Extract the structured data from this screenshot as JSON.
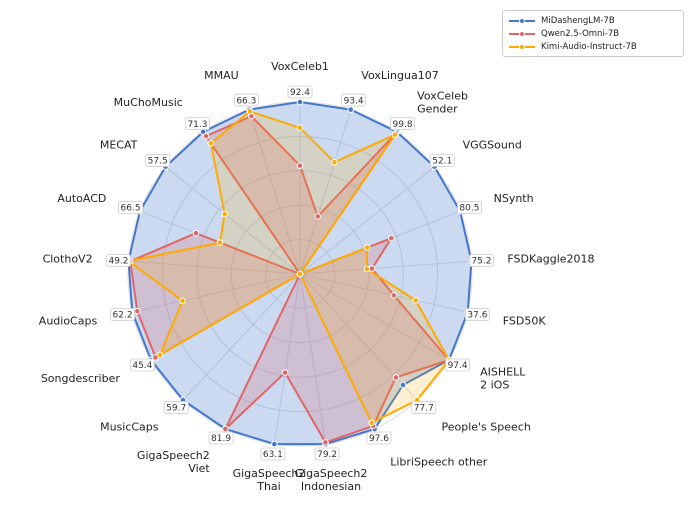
{
  "chart_data": {
    "type": "radar",
    "title": "",
    "categories": [
      "VoxCeleb1",
      "VoxLingua107",
      "VoxCeleb\nGender",
      "VGGSound",
      "NSynth",
      "FSDKaggle2018",
      "FSD50K",
      "AISHELL\n2 iOS",
      "People's Speech",
      "LibriSpeech other",
      "GigaSpeech2\nIndonesian",
      "GigaSpeech2\nThai",
      "GigaSpeech2\nViet",
      "MusicCaps",
      "Songdescriber",
      "AudioCaps",
      "ClothoV2",
      "AutoACD",
      "MECAT",
      "MuChoMusic",
      "MMAU"
    ],
    "max_value_labels": [
      "92.4",
      "93.4",
      "99.8",
      "52.1",
      "80.5",
      "75.2",
      "37.6",
      "97.4",
      "77.7",
      "97.6",
      "79.2",
      "63.1",
      "81.9",
      "59.7",
      "45.4",
      "62.2",
      "49.2",
      "66.5",
      "57.5",
      "71.3",
      "66.3"
    ],
    "series": [
      {
        "name": "MiDashengLM-7B",
        "color": "#4477cc",
        "values": [
          1.0,
          1.0,
          1.0,
          1.0,
          1.0,
          1.0,
          1.0,
          1.0,
          0.88,
          1.0,
          1.0,
          1.0,
          1.0,
          1.0,
          1.0,
          1.0,
          1.0,
          1.0,
          1.0,
          1.0,
          1.0
        ]
      },
      {
        "name": "Qwen2.5-Omni-7B",
        "color": "#e06666",
        "values": [
          0.63,
          0.35,
          0.99,
          0.0,
          0.57,
          0.42,
          0.56,
          1.0,
          0.82,
          0.98,
          0.99,
          0.58,
          1.0,
          0.0,
          0.97,
          0.97,
          0.99,
          0.65,
          0.0,
          0.97,
          0.96
        ]
      },
      {
        "name": "Kimi-Audio-Instruct-7B",
        "color": "#ffaa00",
        "values": [
          0.85,
          0.68,
          0.98,
          0.0,
          0.42,
          0.39,
          0.69,
          1.0,
          1.0,
          0.96,
          0.0,
          0.0,
          0.0,
          0.0,
          0.94,
          0.7,
          1.0,
          0.5,
          0.56,
          0.92,
          0.99
        ]
      }
    ],
    "rlim": [
      0,
      1
    ],
    "grid": true,
    "legend_position": "top-right"
  }
}
